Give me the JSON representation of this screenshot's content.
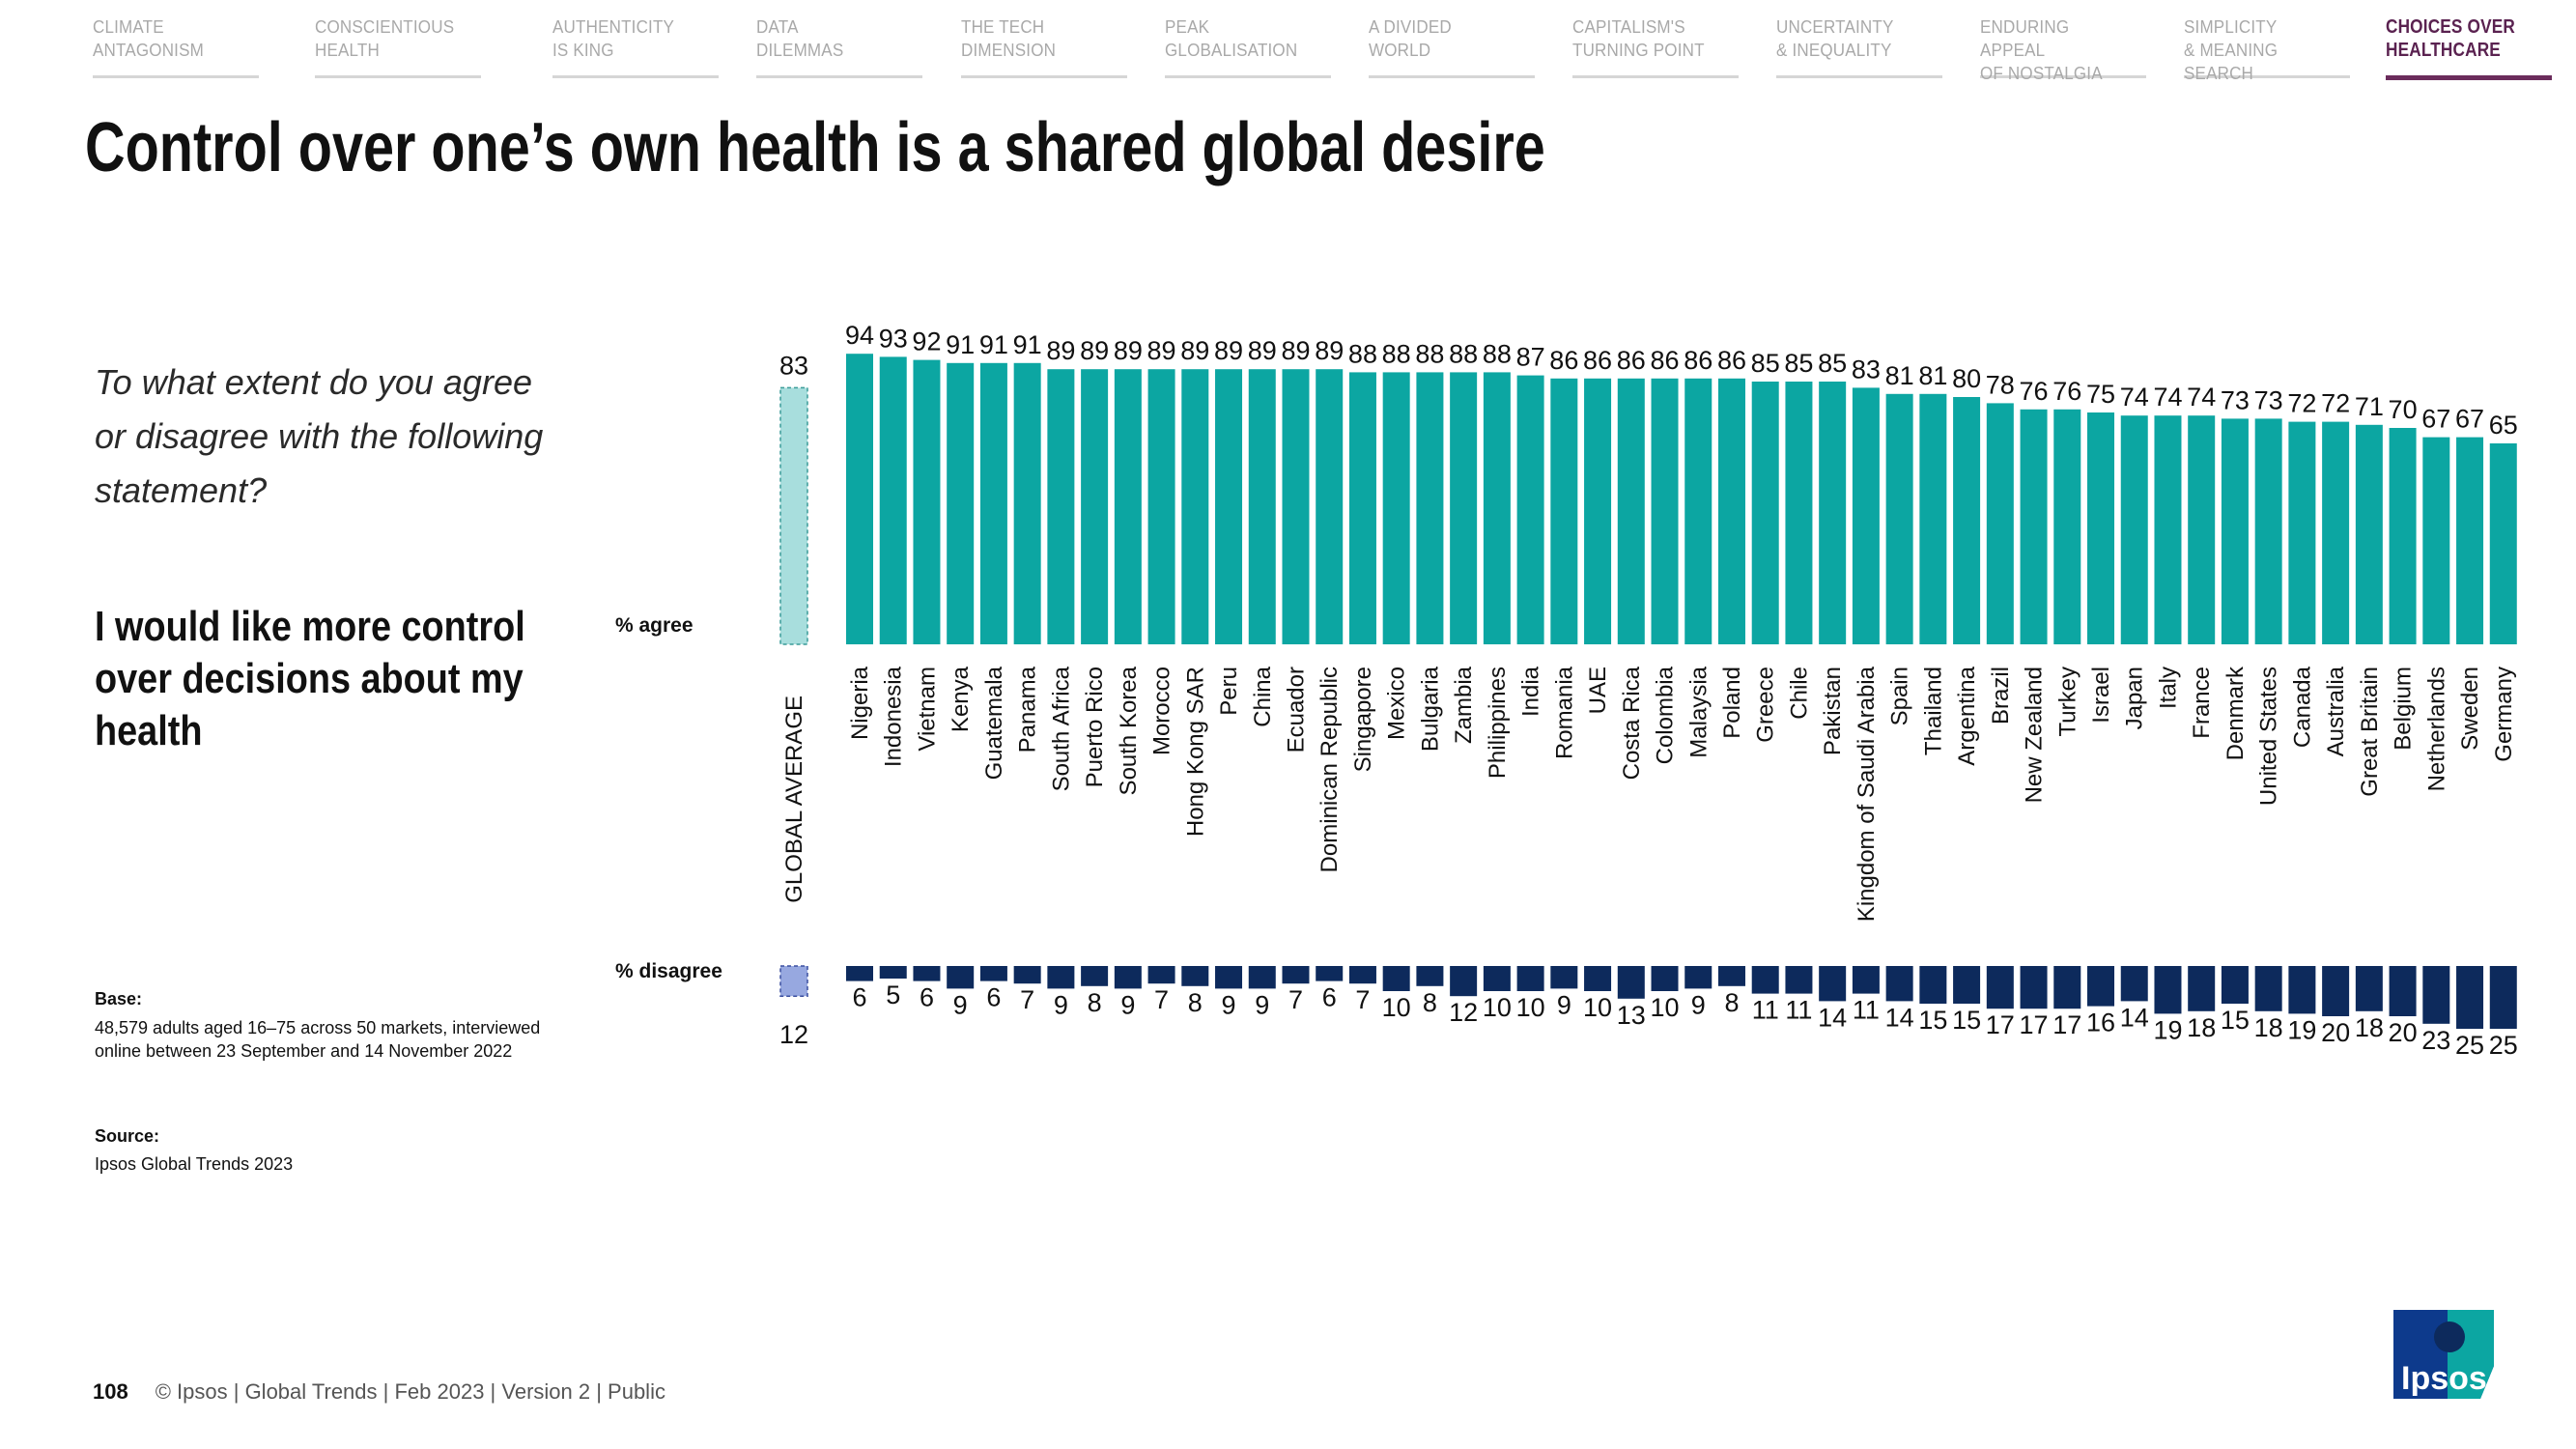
{
  "nav": {
    "tabs": [
      {
        "label": "CLIMATE\nANTAGONISM",
        "active": false
      },
      {
        "label": "CONSCIENTIOUS\nHEALTH",
        "active": false
      },
      {
        "label": "AUTHENTICITY\nIS KING",
        "active": false
      },
      {
        "label": "DATA\nDILEMMAS",
        "active": false
      },
      {
        "label": "THE TECH\nDIMENSION",
        "active": false
      },
      {
        "label": "PEAK\nGLOBALISATION",
        "active": false
      },
      {
        "label": "A DIVIDED\nWORLD",
        "active": false
      },
      {
        "label": "CAPITALISM'S\nTURNING POINT",
        "active": false
      },
      {
        "label": "UNCERTAINTY\n& INEQUALITY",
        "active": false
      },
      {
        "label": "ENDURING APPEAL\nOF NOSTALGIA",
        "active": false
      },
      {
        "label": "SIMPLICITY\n& MEANING SEARCH",
        "active": false
      },
      {
        "label": "CHOICES OVER\nHEALTHCARE",
        "active": true
      }
    ]
  },
  "title": "Control over one’s own health is a shared global desire",
  "question": "To what extent do you agree or disagree with the following statement?",
  "statement": "I would like more control over decisions about my health",
  "base": {
    "heading": "Base:",
    "text": "48,579 adults aged 16–75 across 50 markets, interviewed online between 23 September and 14 November 2022"
  },
  "source": {
    "heading": "Source:",
    "text": "Ipsos Global Trends 2023"
  },
  "footer": {
    "page": "108",
    "text": "© Ipsos | Global Trends | Feb 2023 | Version 2 | Public"
  },
  "logo": {
    "text": "Ipsos"
  },
  "colors": {
    "agree": "#0ca6a2",
    "disagree": "#0d2a5c",
    "avg_agree": "#a8dedd",
    "avg_disagree": "#97a8e0",
    "title": "#111111",
    "nav_active": "#6b2c5c"
  },
  "chart_data": {
    "type": "bar",
    "agree_label": "% agree",
    "disagree_label": "% disagree",
    "global_average": {
      "label": "GLOBAL AVERAGE",
      "agree": 83,
      "disagree": 12
    },
    "categories": [
      "Nigeria",
      "Indonesia",
      "Vietnam",
      "Kenya",
      "Guatemala",
      "Panama",
      "South Africa",
      "Puerto Rico",
      "South Korea",
      "Morocco",
      "Hong Kong SAR",
      "Peru",
      "China",
      "Ecuador",
      "Dominican Republic",
      "Singapore",
      "Mexico",
      "Bulgaria",
      "Zambia",
      "Philippines",
      "India",
      "Romania",
      "UAE",
      "Costa Rica",
      "Colombia",
      "Malaysia",
      "Poland",
      "Greece",
      "Chile",
      "Pakistan",
      "Kingdom of Saudi Arabia",
      "Spain",
      "Thailand",
      "Argentina",
      "Brazil",
      "New Zealand",
      "Turkey",
      "Israel",
      "Japan",
      "Italy",
      "France",
      "Denmark",
      "United States",
      "Canada",
      "Australia",
      "Great Britain",
      "Belgium",
      "Netherlands",
      "Sweden",
      "Germany"
    ],
    "series": [
      {
        "name": "% agree",
        "values": [
          94,
          93,
          92,
          91,
          91,
          91,
          89,
          89,
          89,
          89,
          89,
          89,
          89,
          89,
          89,
          88,
          88,
          88,
          88,
          88,
          87,
          86,
          86,
          86,
          86,
          86,
          86,
          85,
          85,
          85,
          83,
          81,
          81,
          80,
          78,
          76,
          76,
          75,
          74,
          74,
          74,
          73,
          73,
          72,
          72,
          71,
          70,
          67,
          67,
          65
        ]
      },
      {
        "name": "% disagree",
        "values": [
          6,
          5,
          6,
          9,
          6,
          7,
          9,
          8,
          9,
          7,
          8,
          9,
          9,
          7,
          6,
          7,
          10,
          8,
          12,
          10,
          10,
          9,
          10,
          13,
          10,
          9,
          8,
          11,
          11,
          14,
          11,
          14,
          15,
          15,
          17,
          17,
          17,
          16,
          14,
          19,
          18,
          15,
          18,
          19,
          20,
          18,
          20,
          23,
          25,
          25
        ]
      }
    ]
  }
}
